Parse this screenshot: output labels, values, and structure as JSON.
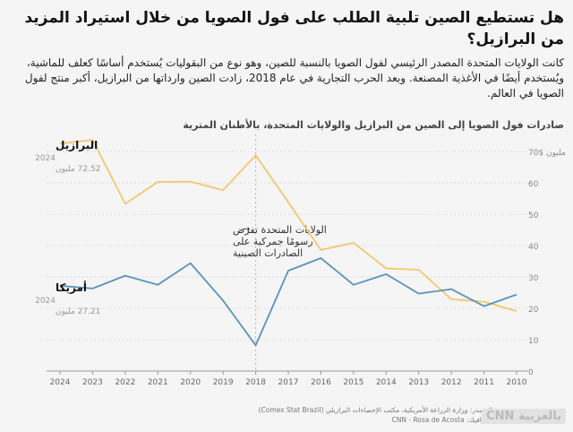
{
  "headline": "هل تستطيع الصين تلبية الطلب على فول الصويا من خلال استيراد المزيد من البرازيل؟",
  "intro": "كانت الولايات المتحدة المصدر الرئيسي لفول الصويا بالنسبة للصين، وهو نوع من البقوليات يُستخدم أساسًا كعلف للماشية، ويُستخدم أيضًا في الأغذية المصنعة. وبعد الحرب التجارية في عام 2018، زادت الصين وارداتها من البرازيل، أكبر منتج لفول الصويا في العالم.",
  "source": {
    "line1": "المصدر: وزارة الزراعة الأمريكية، مكتب الإحصاءات البرازيلي (Comex Stat Brazil)",
    "line2": "الغرافيك: CNN - Rosa de Acosta"
  },
  "logo": "CNN بالعربية",
  "chart_data": {
    "type": "line",
    "title": "صادرات فول الصويا إلى الصين من البرازيل والولايات المتحدة، بالأطنان المترية",
    "x": [
      2024,
      2023,
      2022,
      2021,
      2020,
      2019,
      2018,
      2017,
      2016,
      2015,
      2014,
      2013,
      2012,
      2011,
      2010
    ],
    "x_labels": [
      "2024",
      "2023",
      "2022",
      "2021",
      "2020",
      "2019",
      "2018",
      "2017",
      "2016",
      "2015",
      "2014",
      "2013",
      "2012",
      "2011",
      "2010"
    ],
    "x_direction": "right-to-left",
    "ylim": [
      0,
      70
    ],
    "yticks": [
      0,
      10,
      20,
      30,
      40,
      50,
      60,
      70
    ],
    "ytick_labels": [
      "0",
      "10",
      "20",
      "30",
      "40",
      "50",
      "60",
      "70$ مليون"
    ],
    "grid": "horizontal dotted",
    "series": [
      {
        "name": "البرازيل",
        "color": "#f0c870",
        "values": [
          72.52,
          73.7,
          53.3,
          60.3,
          60.4,
          57.7,
          68.8,
          53.8,
          38.6,
          40.9,
          32.7,
          32.3,
          22.9,
          22.1,
          19.1
        ],
        "end_label": {
          "name": "البرازيل",
          "year": "2024",
          "value_text": "72.52 مليون"
        }
      },
      {
        "name": "أمريكا",
        "color": "#5b93b8",
        "values": [
          27.21,
          26.3,
          30.4,
          27.5,
          34.4,
          22.5,
          8.2,
          32.0,
          36.0,
          27.5,
          30.9,
          24.7,
          26.1,
          20.7,
          24.4
        ]
      }
    ],
    "series_end_labels": [
      {
        "name": "البرازيل",
        "year": "2024",
        "value_text": "72.52 مليون",
        "color": "#c9a040"
      },
      {
        "name": "أمريكا",
        "year": "2024",
        "value_text": "27.21 مليون",
        "color": "#5b93b8"
      }
    ],
    "annotation": {
      "year": 2018,
      "lines": [
        "الولايات المتحدة تفرض",
        "رسومًا جمركية على",
        "الصادرات الصينية"
      ],
      "arrow": "→"
    }
  }
}
